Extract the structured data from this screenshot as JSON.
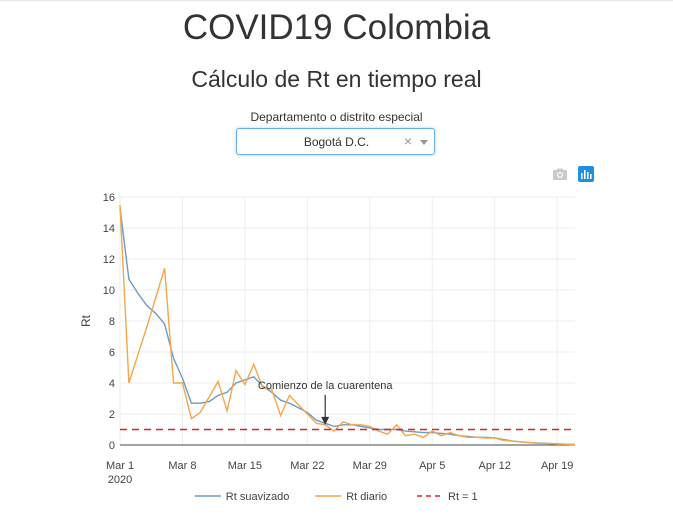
{
  "header": {
    "title": "COVID19 Colombia",
    "subtitle": "Cálculo de Rt en tiempo real"
  },
  "selector": {
    "label": "Departamento o distrito especial",
    "value": "Bogotá D.C.",
    "clear_glyph": "×"
  },
  "modebar": {
    "icons": [
      "camera-icon",
      "plotly-logo-icon"
    ]
  },
  "colors": {
    "smoothed": "#6c9bc7",
    "daily": "#f4a64a",
    "threshold": "#d62728",
    "grid": "#eeeeee",
    "accent": "#1f8fe0"
  },
  "chart_data": {
    "type": "line",
    "ylabel": "Rt",
    "ylim": [
      0,
      16
    ],
    "yticks": [
      0,
      2,
      4,
      6,
      8,
      10,
      12,
      14,
      16
    ],
    "x_start": "2020-03-01",
    "x_end": "2020-04-21",
    "xticks": [
      {
        "date": "2020-03-01",
        "label": "Mar 1",
        "sublabel": "2020"
      },
      {
        "date": "2020-03-08",
        "label": "Mar 8"
      },
      {
        "date": "2020-03-15",
        "label": "Mar 15"
      },
      {
        "date": "2020-03-22",
        "label": "Mar 22"
      },
      {
        "date": "2020-03-29",
        "label": "Mar 29"
      },
      {
        "date": "2020-04-05",
        "label": "Apr 5"
      },
      {
        "date": "2020-04-12",
        "label": "Apr 12"
      },
      {
        "date": "2020-04-19",
        "label": "Apr 19"
      }
    ],
    "grid": true,
    "legend_position": "bottom",
    "series": [
      {
        "name": "Rt suavizado",
        "color": "#6c9bc7",
        "dash": "solid",
        "points": [
          [
            "2020-03-01",
            15.3
          ],
          [
            "2020-03-02",
            10.7
          ],
          [
            "2020-03-03",
            9.8
          ],
          [
            "2020-03-04",
            9.0
          ],
          [
            "2020-03-05",
            8.5
          ],
          [
            "2020-03-06",
            7.8
          ],
          [
            "2020-03-07",
            5.6
          ],
          [
            "2020-03-08",
            4.3
          ],
          [
            "2020-03-09",
            2.7
          ],
          [
            "2020-03-10",
            2.7
          ],
          [
            "2020-03-11",
            2.8
          ],
          [
            "2020-03-12",
            3.2
          ],
          [
            "2020-03-13",
            3.4
          ],
          [
            "2020-03-14",
            4.0
          ],
          [
            "2020-03-15",
            4.2
          ],
          [
            "2020-03-16",
            4.4
          ],
          [
            "2020-03-17",
            3.8
          ],
          [
            "2020-03-18",
            3.4
          ],
          [
            "2020-03-19",
            2.9
          ],
          [
            "2020-03-20",
            2.7
          ],
          [
            "2020-03-21",
            2.4
          ],
          [
            "2020-03-22",
            2.1
          ],
          [
            "2020-03-23",
            1.6
          ],
          [
            "2020-03-24",
            1.4
          ],
          [
            "2020-03-25",
            1.2
          ],
          [
            "2020-03-26",
            1.3
          ],
          [
            "2020-03-27",
            1.3
          ],
          [
            "2020-03-28",
            1.2
          ],
          [
            "2020-03-29",
            1.1
          ],
          [
            "2020-03-30",
            1.0
          ],
          [
            "2020-03-31",
            1.0
          ],
          [
            "2020-04-01",
            1.0
          ],
          [
            "2020-04-02",
            0.9
          ],
          [
            "2020-04-03",
            0.85
          ],
          [
            "2020-04-04",
            0.8
          ],
          [
            "2020-04-05",
            0.8
          ],
          [
            "2020-04-06",
            0.75
          ],
          [
            "2020-04-07",
            0.7
          ],
          [
            "2020-04-08",
            0.6
          ],
          [
            "2020-04-09",
            0.55
          ],
          [
            "2020-04-10",
            0.5
          ],
          [
            "2020-04-11",
            0.5
          ],
          [
            "2020-04-12",
            0.45
          ],
          [
            "2020-04-13",
            0.35
          ],
          [
            "2020-04-14",
            0.25
          ],
          [
            "2020-04-15",
            0.2
          ],
          [
            "2020-04-16",
            0.15
          ],
          [
            "2020-04-17",
            0.12
          ],
          [
            "2020-04-18",
            0.1
          ],
          [
            "2020-04-19",
            0.08
          ],
          [
            "2020-04-20",
            0.05
          ],
          [
            "2020-04-21",
            0.03
          ]
        ]
      },
      {
        "name": "Rt diario",
        "color": "#f4a64a",
        "dash": "solid",
        "points": [
          [
            "2020-03-01",
            15.5
          ],
          [
            "2020-03-02",
            4.0
          ],
          [
            "2020-03-03",
            5.8
          ],
          [
            "2020-03-04",
            7.6
          ],
          [
            "2020-03-05",
            9.5
          ],
          [
            "2020-03-06",
            11.4
          ],
          [
            "2020-03-07",
            4.0
          ],
          [
            "2020-03-08",
            4.0
          ],
          [
            "2020-03-09",
            1.7
          ],
          [
            "2020-03-10",
            2.1
          ],
          [
            "2020-03-11",
            3.1
          ],
          [
            "2020-03-12",
            4.1
          ],
          [
            "2020-03-13",
            2.2
          ],
          [
            "2020-03-14",
            4.8
          ],
          [
            "2020-03-15",
            3.9
          ],
          [
            "2020-03-16",
            5.2
          ],
          [
            "2020-03-17",
            3.7
          ],
          [
            "2020-03-18",
            3.6
          ],
          [
            "2020-03-19",
            1.9
          ],
          [
            "2020-03-20",
            3.2
          ],
          [
            "2020-03-21",
            2.6
          ],
          [
            "2020-03-22",
            2.0
          ],
          [
            "2020-03-23",
            1.4
          ],
          [
            "2020-03-24",
            1.3
          ],
          [
            "2020-03-25",
            0.9
          ],
          [
            "2020-03-26",
            1.5
          ],
          [
            "2020-03-27",
            1.3
          ],
          [
            "2020-03-28",
            1.3
          ],
          [
            "2020-03-29",
            1.2
          ],
          [
            "2020-03-30",
            0.9
          ],
          [
            "2020-03-31",
            0.7
          ],
          [
            "2020-04-01",
            1.3
          ],
          [
            "2020-04-02",
            0.6
          ],
          [
            "2020-04-03",
            0.7
          ],
          [
            "2020-04-04",
            0.5
          ],
          [
            "2020-04-05",
            0.9
          ],
          [
            "2020-04-06",
            0.6
          ],
          [
            "2020-04-07",
            0.8
          ],
          [
            "2020-04-08",
            0.6
          ],
          [
            "2020-04-09",
            0.5
          ],
          [
            "2020-04-10",
            0.5
          ],
          [
            "2020-04-11",
            0.45
          ],
          [
            "2020-04-12",
            0.45
          ],
          [
            "2020-04-13",
            0.3
          ],
          [
            "2020-04-14",
            0.25
          ],
          [
            "2020-04-15",
            0.2
          ],
          [
            "2020-04-16",
            0.15
          ],
          [
            "2020-04-17",
            0.1
          ],
          [
            "2020-04-18",
            0.1
          ],
          [
            "2020-04-19",
            0.05
          ],
          [
            "2020-04-20",
            0.05
          ],
          [
            "2020-04-21",
            0.02
          ]
        ]
      },
      {
        "name": "Rt = 1",
        "color": "#d62728",
        "dash": "dash",
        "points": [
          [
            "2020-03-01",
            1
          ],
          [
            "2020-04-21",
            1
          ]
        ]
      }
    ],
    "annotations": [
      {
        "text": "Comienzo de la cuarentena",
        "x": "2020-03-24",
        "y": 1.3,
        "arrow": true
      }
    ]
  }
}
